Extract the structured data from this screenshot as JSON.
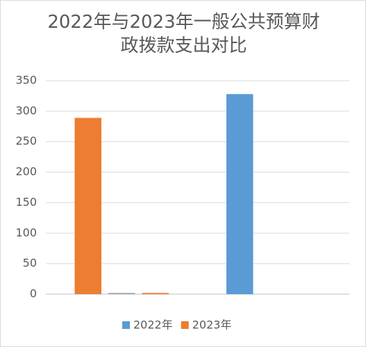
{
  "chart_data": {
    "type": "bar",
    "title": "2022年与2023年一般公共预算财政拨款支出对比",
    "categories": [
      null,
      null
    ],
    "series": [
      {
        "colors": [
          "#ed7d31",
          "#5b9bd5"
        ],
        "values": [
          289,
          328
        ]
      },
      {
        "color": "#a5a5a5",
        "values": [
          2,
          null
        ]
      },
      {
        "color": "#ed7d31",
        "values": [
          2,
          null
        ]
      }
    ],
    "legend": [
      {
        "label": "2022年",
        "color": "#5b9bd5"
      },
      {
        "label": "2023年",
        "color": "#ed7d31"
      }
    ],
    "ylim": [
      0,
      350
    ],
    "yticks": [
      0,
      50,
      100,
      150,
      200,
      250,
      300,
      350
    ],
    "grid": true
  }
}
